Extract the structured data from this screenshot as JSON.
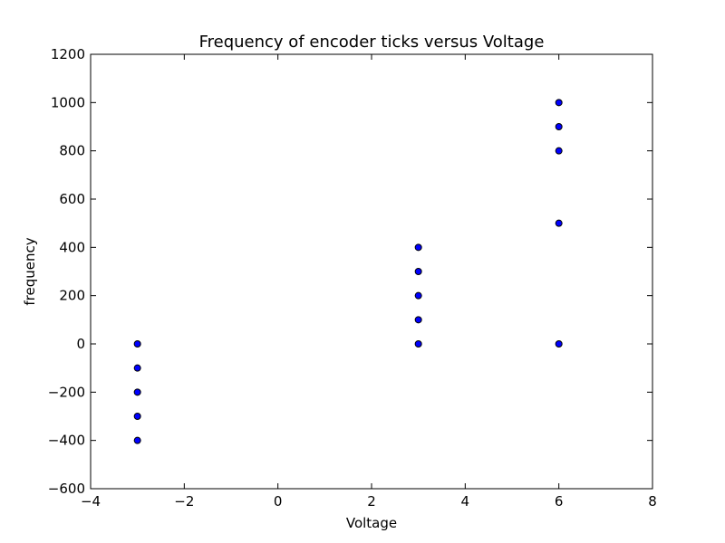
{
  "chart_data": {
    "type": "scatter",
    "title": "Frequency of encoder ticks versus Voltage",
    "xlabel": "Voltage",
    "ylabel": "frequency",
    "xlim": [
      -4,
      8
    ],
    "ylim": [
      -600,
      1200
    ],
    "xticks": [
      -4,
      -2,
      0,
      2,
      4,
      6,
      8
    ],
    "yticks": [
      -600,
      -400,
      -200,
      0,
      200,
      400,
      600,
      800,
      1000,
      1200
    ],
    "xtick_labels": [
      "−4",
      "−2",
      "0",
      "2",
      "4",
      "6",
      "8"
    ],
    "ytick_labels": [
      "−600",
      "−400",
      "−200",
      "0",
      "200",
      "400",
      "600",
      "800",
      "1000",
      "1200"
    ],
    "grid": false,
    "marker_color": "#0000ff",
    "marker_edge": "#000000",
    "points": [
      {
        "x": -3,
        "y": 0
      },
      {
        "x": -3,
        "y": -100
      },
      {
        "x": -3,
        "y": -200
      },
      {
        "x": -3,
        "y": -300
      },
      {
        "x": -3,
        "y": -400
      },
      {
        "x": 3,
        "y": 0
      },
      {
        "x": 3,
        "y": 100
      },
      {
        "x": 3,
        "y": 200
      },
      {
        "x": 3,
        "y": 300
      },
      {
        "x": 3,
        "y": 400
      },
      {
        "x": 6,
        "y": 0
      },
      {
        "x": 6,
        "y": 500
      },
      {
        "x": 6,
        "y": 800
      },
      {
        "x": 6,
        "y": 900
      },
      {
        "x": 6,
        "y": 1000
      }
    ]
  }
}
